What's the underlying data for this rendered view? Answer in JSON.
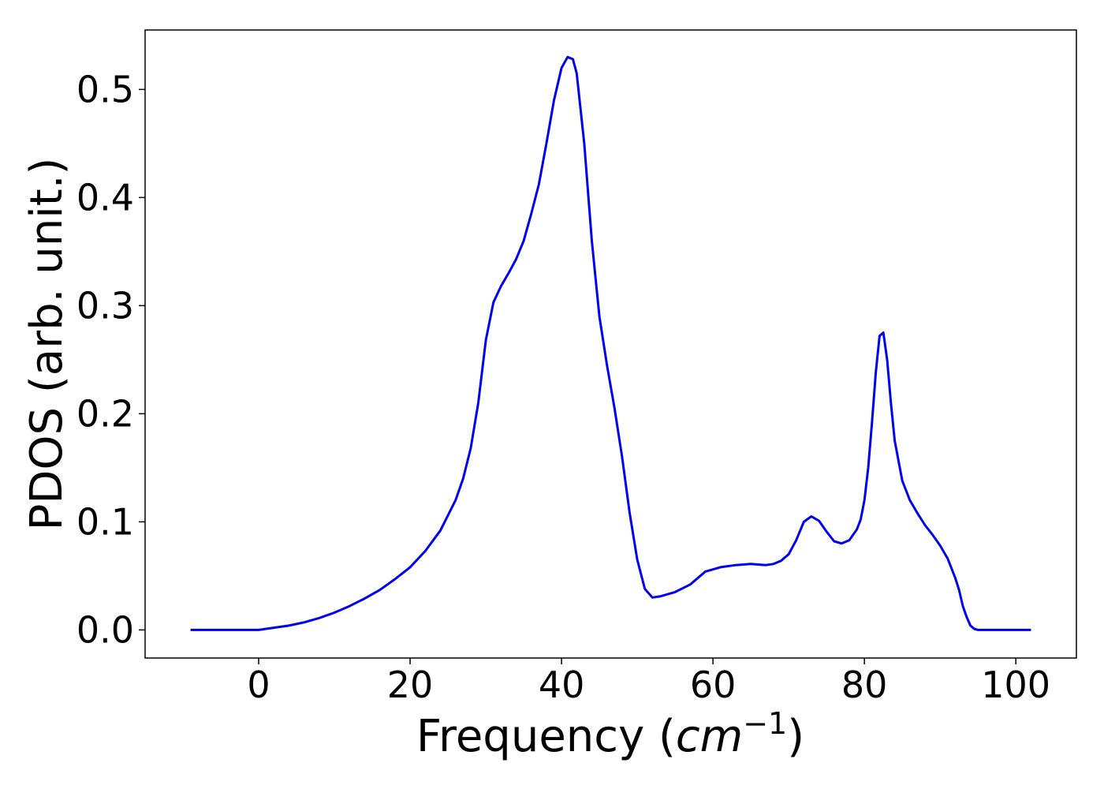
{
  "chart_data": {
    "type": "line",
    "title": "",
    "xlabel": "Frequency (",
    "xlabel_math": "cm",
    "xlabel_sup": "−1",
    "xlabel_close": ")",
    "ylabel": "PDOS (arb. unit.)",
    "xlim": [
      -15,
      108
    ],
    "ylim": [
      -0.026,
      0.555
    ],
    "xticks": [
      0,
      20,
      40,
      60,
      80,
      100
    ],
    "xtick_labels": [
      "0",
      "20",
      "40",
      "60",
      "80",
      "100"
    ],
    "yticks": [
      0.0,
      0.1,
      0.2,
      0.3,
      0.4,
      0.5
    ],
    "ytick_labels": [
      "0.0",
      "0.1",
      "0.2",
      "0.3",
      "0.4",
      "0.5"
    ],
    "grid": false,
    "line_color": "#0000ee",
    "series": [
      {
        "x": [
          -9,
          0,
          2,
          4,
          6,
          8,
          10,
          12,
          14,
          16,
          18,
          20,
          22,
          24,
          26,
          27,
          28,
          29,
          30,
          31,
          32,
          33,
          34,
          35,
          36,
          37,
          38,
          39,
          40,
          40.8,
          41.5,
          42,
          43,
          44,
          45,
          46,
          47,
          48,
          49,
          50,
          51,
          52,
          53,
          55,
          57,
          59,
          61,
          63,
          65,
          67,
          68,
          69,
          70,
          71,
          72,
          73,
          74,
          75,
          76,
          77,
          78,
          78.5,
          79,
          79.5,
          80,
          80.5,
          81,
          81.5,
          82,
          82.5,
          83,
          83.5,
          84,
          85,
          86,
          87,
          88,
          89,
          90,
          91,
          92,
          92.5,
          93,
          93.5,
          94,
          94.5,
          95,
          96,
          97,
          98,
          100,
          102
        ],
        "y": [
          0.0,
          0.0,
          0.002,
          0.004,
          0.007,
          0.011,
          0.016,
          0.022,
          0.029,
          0.037,
          0.047,
          0.058,
          0.073,
          0.092,
          0.12,
          0.14,
          0.168,
          0.21,
          0.268,
          0.303,
          0.318,
          0.33,
          0.343,
          0.36,
          0.385,
          0.412,
          0.45,
          0.49,
          0.52,
          0.53,
          0.528,
          0.515,
          0.45,
          0.36,
          0.29,
          0.245,
          0.205,
          0.16,
          0.108,
          0.065,
          0.038,
          0.03,
          0.031,
          0.035,
          0.042,
          0.054,
          0.058,
          0.06,
          0.061,
          0.06,
          0.061,
          0.064,
          0.07,
          0.083,
          0.1,
          0.105,
          0.101,
          0.091,
          0.082,
          0.08,
          0.083,
          0.088,
          0.093,
          0.102,
          0.12,
          0.15,
          0.192,
          0.238,
          0.272,
          0.275,
          0.25,
          0.21,
          0.175,
          0.138,
          0.12,
          0.108,
          0.097,
          0.088,
          0.078,
          0.066,
          0.048,
          0.037,
          0.022,
          0.012,
          0.004,
          0.001,
          0.0,
          0.0,
          0.0,
          0.0,
          0.0,
          0.0
        ]
      }
    ]
  }
}
